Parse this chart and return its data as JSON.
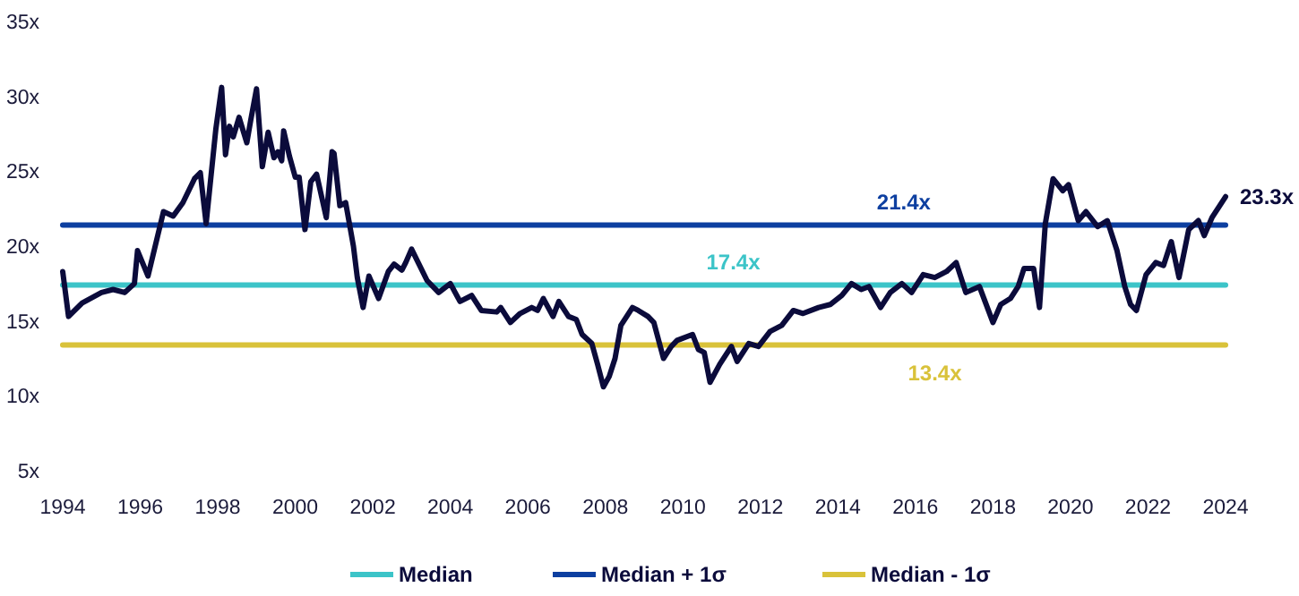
{
  "chart_data": {
    "type": "line",
    "xlim": [
      1994,
      2024
    ],
    "ylim": [
      5,
      35
    ],
    "xticks": [
      1994,
      1996,
      1998,
      2000,
      2002,
      2004,
      2006,
      2008,
      2010,
      2012,
      2014,
      2016,
      2018,
      2020,
      2022,
      2024
    ],
    "yticks": [
      {
        "value": 5,
        "label": "5x"
      },
      {
        "value": 10,
        "label": "10x"
      },
      {
        "value": 15,
        "label": "15x"
      },
      {
        "value": 20,
        "label": "20x"
      },
      {
        "value": 25,
        "label": "25x"
      },
      {
        "value": 30,
        "label": "30x"
      },
      {
        "value": 35,
        "label": "35x"
      }
    ],
    "series": [
      {
        "color": "#0b0b3b",
        "x": [
          1994.0,
          1994.15,
          1994.5,
          1995.0,
          1995.3,
          1995.6,
          1995.85,
          1995.93,
          1996.2,
          1996.6,
          1996.85,
          1997.1,
          1997.4,
          1997.55,
          1997.7,
          1997.95,
          1998.1,
          1998.2,
          1998.3,
          1998.4,
          1998.55,
          1998.75,
          1998.85,
          1999.0,
          1999.15,
          1999.3,
          1999.45,
          1999.55,
          1999.65,
          1999.7,
          1999.85,
          2000.0,
          2000.1,
          2000.25,
          2000.4,
          2000.55,
          2000.8,
          2000.95,
          2001.0,
          2001.15,
          2001.3,
          2001.5,
          2001.6,
          2001.75,
          2001.9,
          2002.15,
          2002.4,
          2002.55,
          2002.75,
          2002.85,
          2003.0,
          2003.4,
          2003.7,
          2004.0,
          2004.25,
          2004.55,
          2004.8,
          2005.2,
          2005.3,
          2005.55,
          2005.8,
          2006.1,
          2006.25,
          2006.4,
          2006.65,
          2006.8,
          2007.05,
          2007.25,
          2007.4,
          2007.65,
          2007.8,
          2007.95,
          2008.1,
          2008.25,
          2008.4,
          2008.7,
          2008.85,
          2009.1,
          2009.25,
          2009.5,
          2009.7,
          2009.85,
          2010.25,
          2010.4,
          2010.55,
          2010.7,
          2010.95,
          2011.25,
          2011.4,
          2011.7,
          2011.95,
          2012.25,
          2012.55,
          2012.85,
          2013.1,
          2013.5,
          2013.8,
          2014.1,
          2014.35,
          2014.6,
          2014.8,
          2015.1,
          2015.35,
          2015.65,
          2015.9,
          2016.2,
          2016.5,
          2016.8,
          2017.05,
          2017.3,
          2017.65,
          2018.0,
          2018.2,
          2018.45,
          2018.65,
          2018.8,
          2019.05,
          2019.2,
          2019.35,
          2019.55,
          2019.8,
          2019.95,
          2020.2,
          2020.4,
          2020.7,
          2020.95,
          2021.2,
          2021.4,
          2021.55,
          2021.7,
          2021.95,
          2022.2,
          2022.4,
          2022.6,
          2022.8,
          2023.05,
          2023.3,
          2023.45,
          2023.65,
          2024.0
        ],
        "values": [
          18.3,
          15.3,
          16.2,
          16.9,
          17.1,
          16.9,
          17.5,
          19.7,
          18.0,
          22.3,
          22.0,
          22.9,
          24.5,
          24.9,
          21.5,
          27.8,
          30.6,
          26.1,
          28.0,
          27.3,
          28.6,
          26.9,
          28.4,
          30.5,
          25.3,
          27.6,
          25.9,
          26.3,
          25.7,
          27.7,
          26.0,
          24.6,
          24.6,
          21.1,
          24.3,
          24.8,
          21.9,
          26.3,
          26.2,
          22.7,
          22.9,
          20.0,
          17.9,
          15.9,
          18.0,
          16.5,
          18.3,
          18.8,
          18.4,
          18.9,
          19.8,
          17.7,
          16.9,
          17.5,
          16.3,
          16.7,
          15.7,
          15.6,
          15.9,
          14.9,
          15.5,
          15.9,
          15.7,
          16.5,
          15.3,
          16.3,
          15.3,
          15.1,
          14.1,
          13.5,
          12.1,
          10.6,
          11.3,
          12.5,
          14.7,
          15.9,
          15.7,
          15.3,
          14.9,
          12.5,
          13.3,
          13.7,
          14.1,
          13.1,
          12.9,
          10.9,
          12.1,
          13.3,
          12.3,
          13.5,
          13.3,
          14.3,
          14.7,
          15.7,
          15.5,
          15.9,
          16.1,
          16.7,
          17.5,
          17.1,
          17.3,
          15.9,
          16.9,
          17.5,
          16.9,
          18.1,
          17.9,
          18.3,
          18.9,
          16.9,
          17.3,
          14.9,
          16.1,
          16.5,
          17.3,
          18.5,
          18.5,
          15.9,
          21.5,
          24.5,
          23.7,
          24.1,
          21.7,
          22.3,
          21.3,
          21.7,
          19.7,
          17.3,
          16.1,
          15.7,
          18.1,
          18.9,
          18.7,
          20.3,
          17.9,
          21.1,
          21.7,
          20.7,
          21.9,
          23.3
        ]
      },
      {
        "name": "Median",
        "color": "#3cc4c8",
        "x": [
          1994,
          2024
        ],
        "values": [
          17.4,
          17.4
        ]
      },
      {
        "name": "Median + 1σ",
        "color": "#0d3fa0",
        "x": [
          1994,
          2024
        ],
        "values": [
          21.4,
          21.4
        ]
      },
      {
        "name": "Median - 1σ",
        "color": "#d9c23a",
        "x": [
          1994,
          2024
        ],
        "values": [
          13.4,
          13.4
        ]
      }
    ],
    "annotations": [
      {
        "text": "21.4x",
        "x": 2015.7,
        "y": 21.4
      },
      {
        "text": "17.4x",
        "x": 2011.3,
        "y": 17.4
      },
      {
        "text": "13.4x",
        "x": 2016.5,
        "y": 13.4
      },
      {
        "text": "23.3x",
        "x": 2024,
        "y": 23.3
      }
    ],
    "legend": "bottom",
    "grid": false
  }
}
